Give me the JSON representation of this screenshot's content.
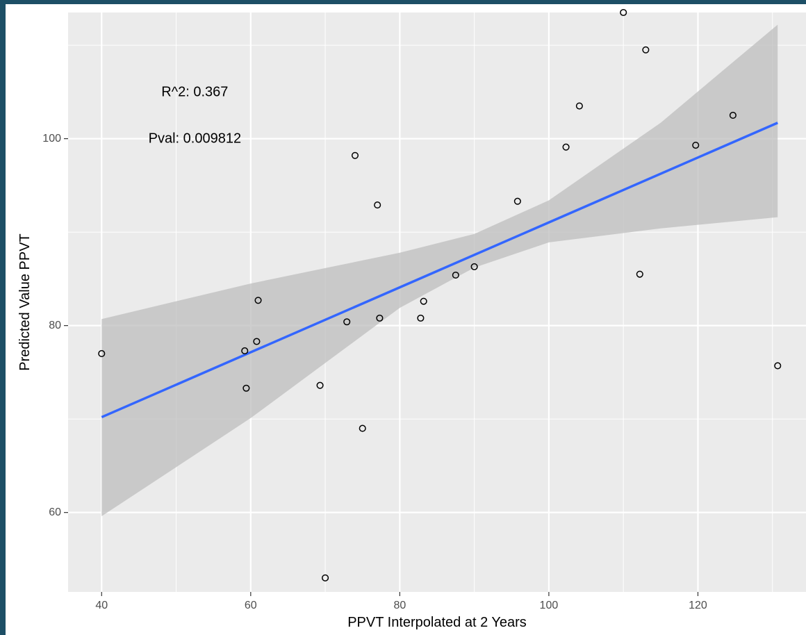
{
  "chart_data": {
    "type": "scatter",
    "title": "",
    "xlabel": "PPVT Interpolated at 2 Years",
    "ylabel": "Predicted Value PPVT",
    "xlim": [
      35.5,
      134.5
    ],
    "ylim": [
      51.5,
      113.5
    ],
    "x_ticks": [
      40,
      60,
      80,
      100,
      120
    ],
    "y_ticks": [
      60,
      80,
      100
    ],
    "x_tick_labels": [
      "40",
      "60",
      "80",
      "100",
      "120"
    ],
    "y_tick_labels": [
      "60",
      "80",
      "100"
    ],
    "grid": true,
    "background": "#ebebeb",
    "point_color": "#000000",
    "line_color": "#3366ff",
    "ribbon_color": "#bdbdbd",
    "points": [
      {
        "x": 40.0,
        "y": 77.0
      },
      {
        "x": 59.2,
        "y": 77.3
      },
      {
        "x": 59.4,
        "y": 73.3
      },
      {
        "x": 60.8,
        "y": 78.3
      },
      {
        "x": 61.0,
        "y": 82.7
      },
      {
        "x": 69.3,
        "y": 73.6
      },
      {
        "x": 70.0,
        "y": 53.0
      },
      {
        "x": 72.9,
        "y": 80.4
      },
      {
        "x": 74.0,
        "y": 98.2
      },
      {
        "x": 75.0,
        "y": 69.0
      },
      {
        "x": 77.0,
        "y": 92.9
      },
      {
        "x": 77.3,
        "y": 80.8
      },
      {
        "x": 82.8,
        "y": 80.8
      },
      {
        "x": 83.2,
        "y": 82.6
      },
      {
        "x": 87.5,
        "y": 85.4
      },
      {
        "x": 90.0,
        "y": 86.3
      },
      {
        "x": 95.8,
        "y": 93.3
      },
      {
        "x": 102.3,
        "y": 99.1
      },
      {
        "x": 104.1,
        "y": 103.5
      },
      {
        "x": 110.0,
        "y": 113.5
      },
      {
        "x": 112.2,
        "y": 85.5
      },
      {
        "x": 113.0,
        "y": 109.5
      },
      {
        "x": 119.7,
        "y": 99.3
      },
      {
        "x": 124.7,
        "y": 102.5
      },
      {
        "x": 130.7,
        "y": 75.7
      }
    ],
    "fit_line": {
      "x": [
        40,
        130.7
      ],
      "y": [
        70.2,
        101.7
      ]
    },
    "confidence_band": {
      "x": [
        40,
        60,
        80,
        90,
        100,
        115,
        130.7
      ],
      "lower": [
        59.6,
        70.1,
        81.9,
        86.2,
        88.9,
        90.4,
        91.6
      ],
      "upper": [
        80.7,
        84.5,
        87.8,
        89.8,
        93.4,
        101.7,
        112.2
      ]
    },
    "annotations": [
      {
        "text": "R^2: 0.367",
        "x": 52.5,
        "y": 105
      },
      {
        "text": "Pval: 0.009812",
        "x": 52.5,
        "y": 100
      }
    ]
  }
}
